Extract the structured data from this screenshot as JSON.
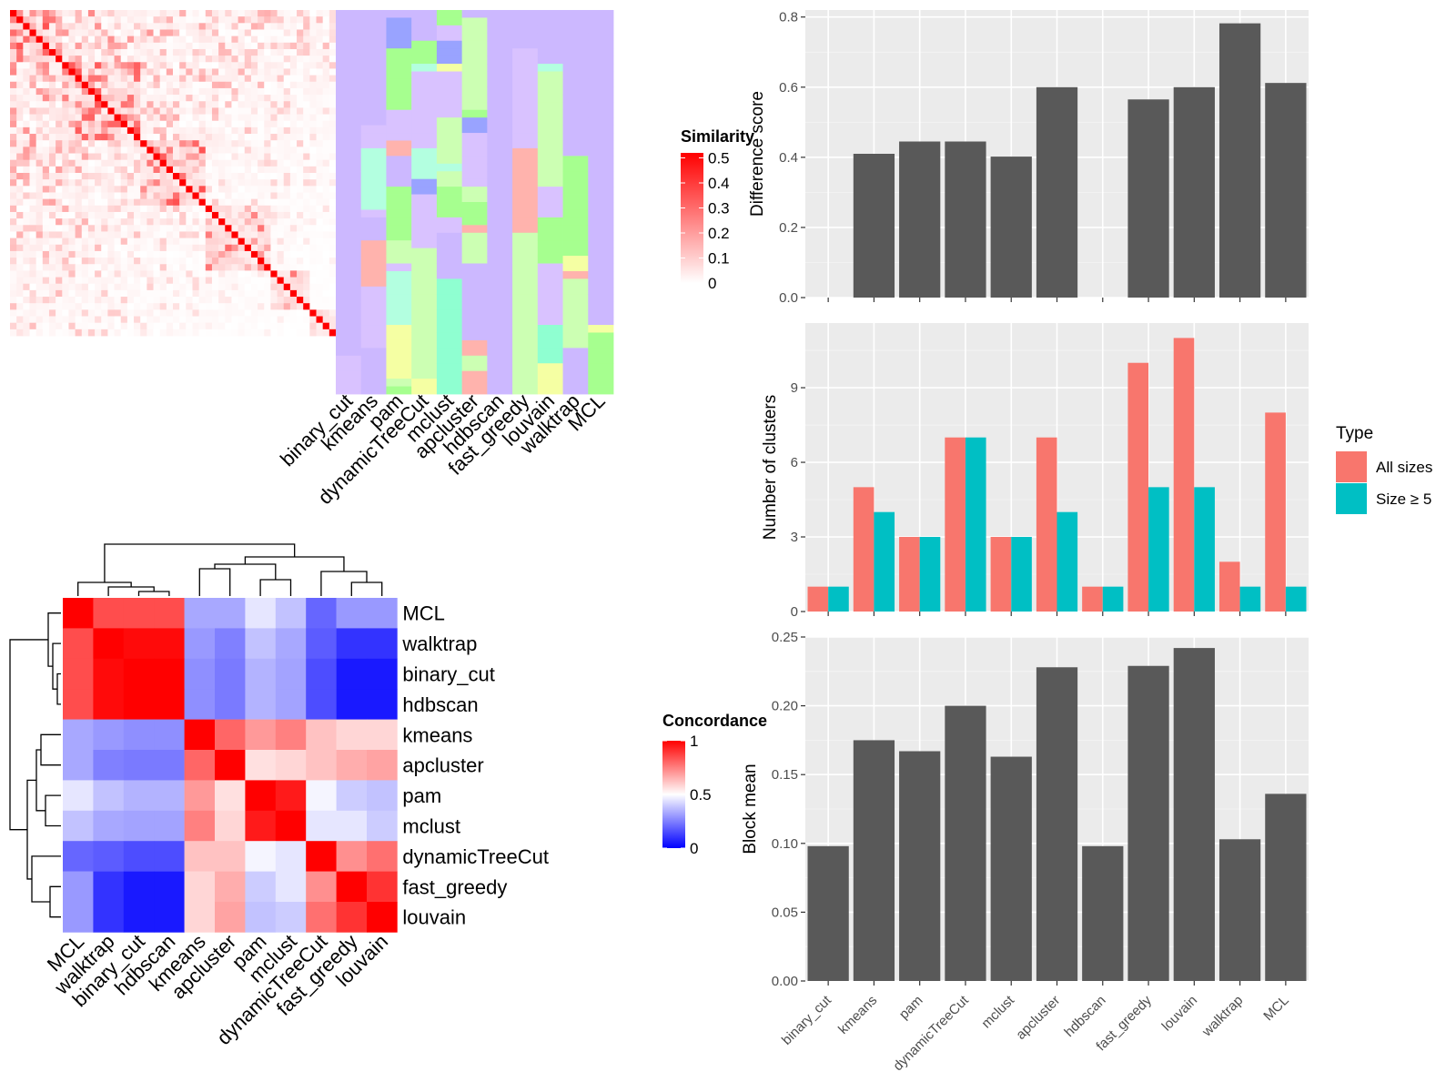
{
  "methods": [
    "binary_cut",
    "kmeans",
    "pam",
    "dynamicTreeCut",
    "mclust",
    "apcluster",
    "hdbscan",
    "fast_greedy",
    "louvain",
    "walktrap",
    "MCL"
  ],
  "similarity_legend": {
    "title": "Similarity",
    "ticks": [
      "0.5",
      "0.4",
      "0.3",
      "0.2",
      "0.1",
      "0"
    ]
  },
  "concordance_legend": {
    "title": "Concordance",
    "ticks": [
      "1",
      "0.5",
      "0"
    ]
  },
  "bar_legend": {
    "title": "Type",
    "entries": [
      "All sizes",
      "Size ≥ 5"
    ],
    "colors": [
      "#f8766d",
      "#00bfc4"
    ]
  },
  "chart_data": [
    {
      "type": "heatmap",
      "title": "",
      "legend_title": "Similarity",
      "value_range": [
        0,
        0.5
      ],
      "n_terms": 50,
      "colors": {
        "low": "#ffffff",
        "high": "#ff0000"
      }
    },
    {
      "type": "heatmap",
      "title": "",
      "columns": [
        "binary_cut",
        "kmeans",
        "pam",
        "dynamicTreeCut",
        "mclust",
        "apcluster",
        "hdbscan",
        "fast_greedy",
        "louvain",
        "walktrap",
        "MCL"
      ],
      "description_note": ""
    },
    {
      "type": "heatmap",
      "legend_title": "Concordance",
      "rows": [
        "MCL",
        "walktrap",
        "binary_cut",
        "hdbscan",
        "kmeans",
        "apcluster",
        "pam",
        "mclust",
        "dynamicTreeCut",
        "fast_greedy",
        "louvain"
      ],
      "columns": [
        "MCL",
        "walktrap",
        "binary_cut",
        "hdbscan",
        "kmeans",
        "apcluster",
        "pam",
        "mclust",
        "dynamicTreeCut",
        "fast_greedy",
        "louvain"
      ],
      "values": [
        [
          1.0,
          0.85,
          0.85,
          0.85,
          0.33,
          0.33,
          0.45,
          0.38,
          0.2,
          0.3,
          0.3
        ],
        [
          0.85,
          1.0,
          0.98,
          0.98,
          0.3,
          0.25,
          0.38,
          0.33,
          0.18,
          0.1,
          0.1
        ],
        [
          0.85,
          0.98,
          1.0,
          1.0,
          0.28,
          0.24,
          0.35,
          0.32,
          0.15,
          0.05,
          0.05
        ],
        [
          0.85,
          0.98,
          1.0,
          1.0,
          0.28,
          0.24,
          0.35,
          0.32,
          0.15,
          0.05,
          0.05
        ],
        [
          0.33,
          0.3,
          0.28,
          0.28,
          1.0,
          0.8,
          0.7,
          0.75,
          0.62,
          0.58,
          0.58
        ],
        [
          0.33,
          0.25,
          0.24,
          0.24,
          0.8,
          1.0,
          0.56,
          0.58,
          0.62,
          0.66,
          0.68
        ],
        [
          0.45,
          0.38,
          0.35,
          0.35,
          0.7,
          0.56,
          1.0,
          0.95,
          0.48,
          0.4,
          0.38
        ],
        [
          0.38,
          0.33,
          0.32,
          0.32,
          0.75,
          0.58,
          0.95,
          1.0,
          0.45,
          0.45,
          0.4
        ],
        [
          0.2,
          0.18,
          0.15,
          0.15,
          0.62,
          0.62,
          0.48,
          0.45,
          1.0,
          0.72,
          0.78
        ],
        [
          0.3,
          0.1,
          0.05,
          0.05,
          0.58,
          0.66,
          0.4,
          0.45,
          0.72,
          1.0,
          0.9
        ],
        [
          0.3,
          0.1,
          0.05,
          0.05,
          0.58,
          0.68,
          0.38,
          0.4,
          0.78,
          0.9,
          1.0
        ]
      ],
      "value_range": [
        0,
        1
      ]
    },
    {
      "type": "bar",
      "categories": [
        "binary_cut",
        "kmeans",
        "pam",
        "dynamicTreeCut",
        "mclust",
        "apcluster",
        "hdbscan",
        "fast_greedy",
        "louvain",
        "walktrap",
        "MCL"
      ],
      "values": [
        null,
        0.41,
        0.445,
        0.445,
        0.402,
        0.6,
        null,
        0.565,
        0.6,
        0.782,
        0.612
      ],
      "ylabel": "Difference score",
      "ylim": [
        0,
        0.82
      ],
      "yticks": [
        0.0,
        0.2,
        0.4,
        0.6,
        0.8
      ],
      "ytick_labels": [
        "0.0",
        "0.2",
        "0.4",
        "0.6",
        "0.8"
      ]
    },
    {
      "type": "bar",
      "categories": [
        "binary_cut",
        "kmeans",
        "pam",
        "dynamicTreeCut",
        "mclust",
        "apcluster",
        "hdbscan",
        "fast_greedy",
        "louvain",
        "walktrap",
        "MCL"
      ],
      "series": [
        {
          "name": "All sizes",
          "values": [
            1,
            5,
            3,
            7,
            3,
            7,
            1,
            10,
            11,
            2,
            8
          ]
        },
        {
          "name": "Size ≥ 5",
          "values": [
            1,
            4,
            3,
            7,
            3,
            4,
            1,
            5,
            5,
            1,
            1
          ]
        }
      ],
      "ylabel": "Number of clusters",
      "ylim": [
        0,
        11.6
      ],
      "yticks": [
        0,
        3,
        6,
        9
      ],
      "ytick_labels": [
        "0",
        "3",
        "6",
        "9"
      ],
      "legend": "right"
    },
    {
      "type": "bar",
      "categories": [
        "binary_cut",
        "kmeans",
        "pam",
        "dynamicTreeCut",
        "mclust",
        "apcluster",
        "hdbscan",
        "fast_greedy",
        "louvain",
        "walktrap",
        "MCL"
      ],
      "values": [
        0.098,
        0.175,
        0.167,
        0.2,
        0.163,
        0.228,
        0.098,
        0.229,
        0.242,
        0.103,
        0.136
      ],
      "ylabel": "Block mean",
      "ylim": [
        0,
        0.25
      ],
      "yticks": [
        0.0,
        0.05,
        0.1,
        0.15,
        0.2,
        0.25
      ],
      "ytick_labels": [
        "0.00",
        "0.05",
        "0.10",
        "0.15",
        "0.20",
        "0.25"
      ]
    }
  ]
}
